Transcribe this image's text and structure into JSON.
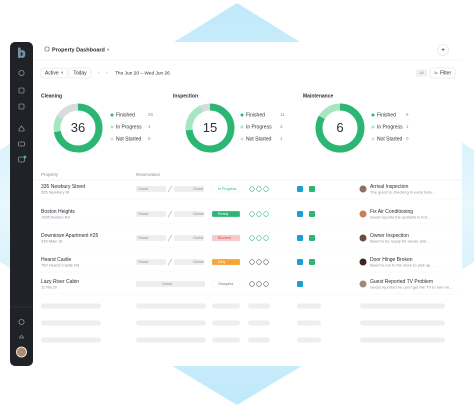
{
  "header": {
    "title": "Property Dashboard"
  },
  "toolbar": {
    "filter_status": "Active",
    "today": "Today",
    "date_range": "Thu Jun 20 – Wed Jun 26",
    "all_badge": "All",
    "filter": "Filter"
  },
  "summary": [
    {
      "title": "Cleaning",
      "total": 36,
      "items": [
        {
          "label": "Finished",
          "value": 26
        },
        {
          "label": "In Progress",
          "value": 4
        },
        {
          "label": "Not Started",
          "value": 6
        }
      ]
    },
    {
      "title": "Inspection",
      "total": 15,
      "items": [
        {
          "label": "Finished",
          "value": 11
        },
        {
          "label": "In Progress",
          "value": 3
        },
        {
          "label": "Not Started",
          "value": 1
        }
      ]
    },
    {
      "title": "Maintenance",
      "total": 6,
      "items": [
        {
          "label": "Finished",
          "value": 5
        },
        {
          "label": "In Progress",
          "value": 1
        },
        {
          "label": "Not Started",
          "value": 0
        }
      ]
    }
  ],
  "table": {
    "columns": [
      "Property",
      "Reservation"
    ],
    "rows": [
      {
        "name": "335 Newbury Street",
        "address": "335 Newbury St",
        "reservation": [
          "Guest",
          "Guest"
        ],
        "status": "In Progress",
        "task": "Arrival Inspection",
        "note": "The guest is checking in early toda..."
      },
      {
        "name": "Boston Heights",
        "address": "1595 Boston Rd",
        "reservation": [
          "Guest",
          "Owner"
        ],
        "status": "Ready",
        "task": "Fix Air Conditioning",
        "note": "Guest reports the upstairs is hot..."
      },
      {
        "name": "Downtown Apartment #25",
        "address": "245 Main St",
        "reservation": [
          "Guest",
          "Guest"
        ],
        "status": "Blocked",
        "task": "Owner Inspection",
        "note": "Need to be ready for owner and..."
      },
      {
        "name": "Hearst Castle",
        "address": "750 Hearst Castle Rd",
        "reservation": [
          "Guest",
          "Owner"
        ],
        "status": "Dirty",
        "task": "Door Hinge Broken",
        "note": "Need to run to the store to pick up..."
      },
      {
        "name": "Lazy River Cabin",
        "address": "11 Rio Dr",
        "reservation": [
          "Guest"
        ],
        "status": "Occupied",
        "task": "Guest Reported TV Problem",
        "note": "Guest reported he can't get the TV to turn on..."
      }
    ]
  }
}
